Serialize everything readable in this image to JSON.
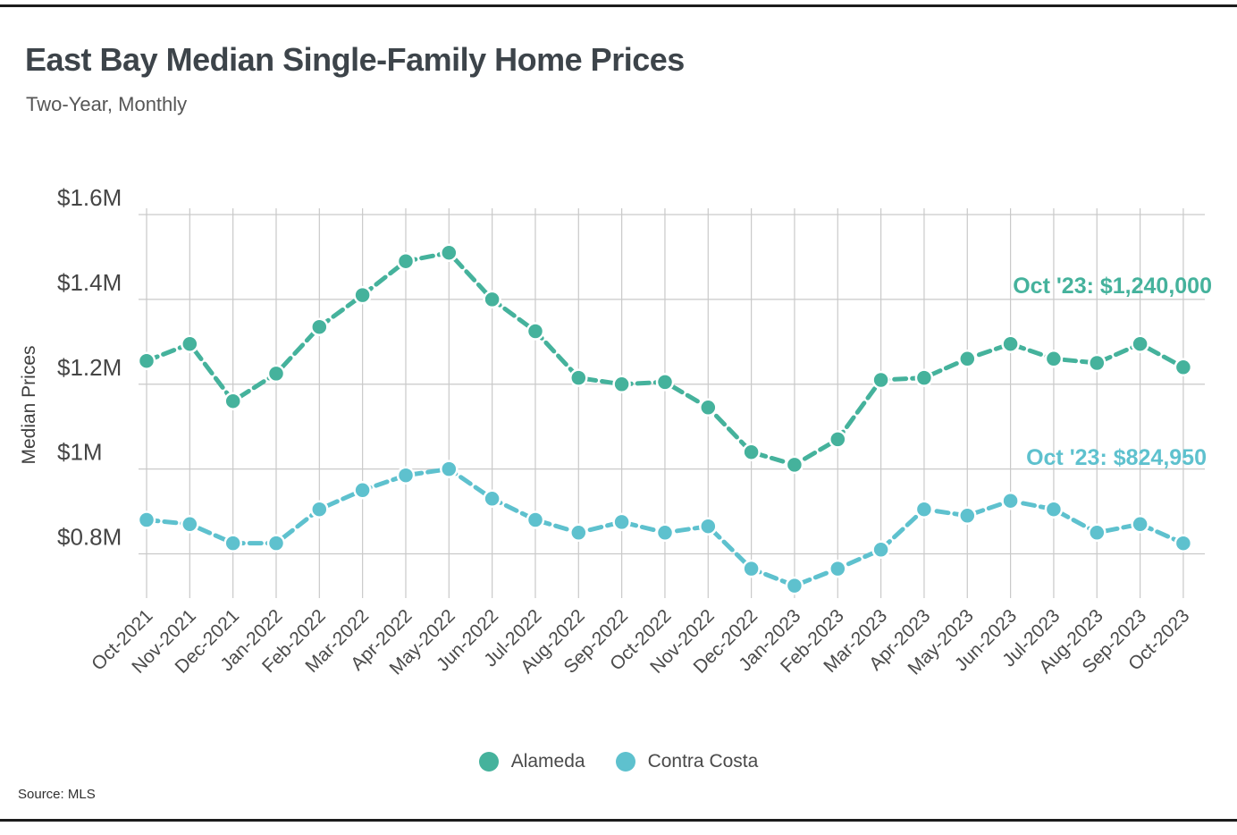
{
  "page": {
    "source": "Source: MLS"
  },
  "chart_data": {
    "type": "line",
    "title": "East Bay Median Single-Family Home Prices",
    "subtitle": "Two-Year, Monthly",
    "xlabel": "",
    "ylabel": "Median Prices",
    "grid": true,
    "legend_position": "bottom-center",
    "ylim": [
      700000,
      1615000
    ],
    "y_ticks": {
      "values": [
        1600000,
        1400000,
        1200000,
        1000000,
        800000
      ],
      "labels": [
        "$1.6M",
        "$1.4M",
        "$1.2M",
        "$1M",
        "$0.8M"
      ]
    },
    "categories": [
      "Oct-2021",
      "Nov-2021",
      "Dec-2021",
      "Jan-2022",
      "Feb-2022",
      "Mar-2022",
      "Apr-2022",
      "May-2022",
      "Jun-2022",
      "Jul-2022",
      "Aug-2022",
      "Sep-2022",
      "Oct-2022",
      "Nov-2022",
      "Dec-2022",
      "Jan-2023",
      "Feb-2023",
      "Mar-2023",
      "Apr-2023",
      "May-2023",
      "Jun-2023",
      "Jul-2023",
      "Aug-2023",
      "Sep-2023",
      "Oct-2023"
    ],
    "series": [
      {
        "name": "Alameda",
        "color": "#45b29c",
        "annotation": "Oct '23: $1,240,000",
        "values": [
          1255000,
          1295000,
          1160000,
          1225000,
          1335000,
          1410000,
          1490000,
          1510000,
          1400000,
          1325000,
          1215000,
          1200000,
          1205000,
          1145000,
          1040000,
          1010000,
          1070000,
          1210000,
          1215000,
          1260000,
          1295000,
          1260000,
          1250000,
          1295000,
          1240000
        ]
      },
      {
        "name": "Contra Costa",
        "color": "#5ec1ce",
        "annotation": "Oct '23: $824,950",
        "values": [
          880000,
          870000,
          825000,
          825000,
          905000,
          950000,
          985000,
          1000000,
          930000,
          880000,
          850000,
          875000,
          850000,
          865000,
          765000,
          725000,
          765000,
          810000,
          905000,
          890000,
          925000,
          905000,
          850000,
          870000,
          824950
        ]
      }
    ]
  }
}
